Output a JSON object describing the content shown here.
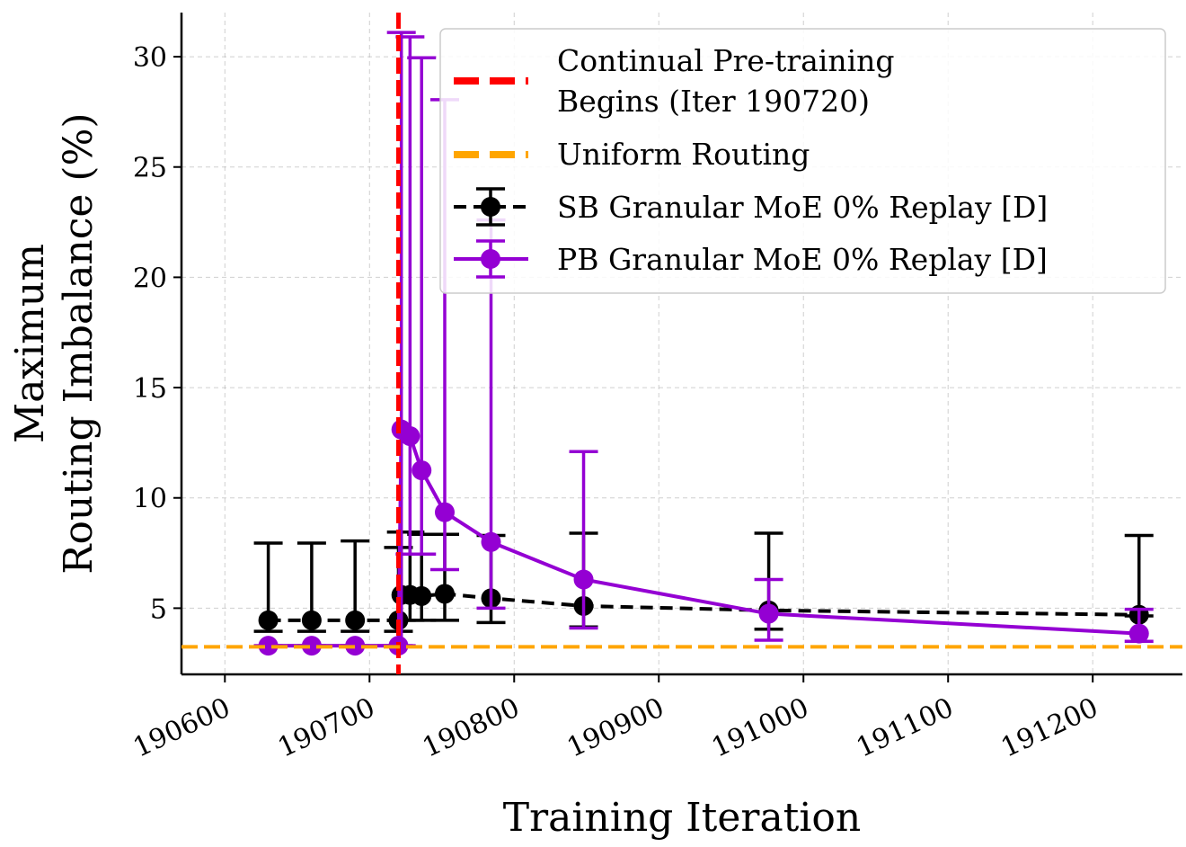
{
  "chart_data": {
    "type": "line",
    "xlabel": "Training Iteration",
    "ylabel_lines": [
      "Maximum",
      "Routing Imbalance (%)"
    ],
    "xlim": [
      190570,
      191262
    ],
    "ylim": [
      2.0,
      32.0
    ],
    "xticks": [
      190600,
      190700,
      190800,
      190900,
      191000,
      191100,
      191200
    ],
    "yticks": [
      5,
      10,
      15,
      20,
      25,
      30
    ],
    "grid": true,
    "legend_position": "top-right",
    "reference_lines": [
      {
        "name": "Continual Pre-training Begins (Iter 190720)",
        "name_lines": [
          "Continual Pre-training",
          "Begins (Iter 190720)"
        ],
        "orientation": "vertical",
        "value": 190720,
        "color": "#ff0000",
        "style": "dashed"
      },
      {
        "name": "Uniform Routing",
        "orientation": "horizontal",
        "value": 3.25,
        "color": "#ffa500",
        "style": "dashed"
      }
    ],
    "series": [
      {
        "name": "SB Granular MoE 0% Replay [D]",
        "color": "#000000",
        "style": "dashed",
        "x": [
          190630,
          190660,
          190690,
          190720,
          190722,
          190728,
          190736,
          190752,
          190784,
          190848,
          190976,
          191232
        ],
        "y": [
          4.45,
          4.45,
          4.45,
          4.45,
          5.6,
          5.6,
          5.55,
          5.65,
          5.45,
          5.1,
          4.9,
          4.7
        ],
        "y_low": [
          3.95,
          3.95,
          3.95,
          3.95,
          4.45,
          4.45,
          4.45,
          4.45,
          4.35,
          4.15,
          4.05,
          4.65
        ],
        "y_high": [
          7.95,
          7.95,
          8.05,
          7.75,
          8.45,
          8.45,
          8.35,
          8.35,
          8.3,
          8.4,
          8.4,
          8.3
        ]
      },
      {
        "name": "PB Granular MoE 0% Replay [D]",
        "color": "#9400d3",
        "style": "solid",
        "x": [
          190630,
          190660,
          190690,
          190720,
          190722,
          190728,
          190736,
          190752,
          190784,
          190848,
          190976,
          191232
        ],
        "y": [
          3.3,
          3.3,
          3.3,
          3.3,
          13.1,
          12.8,
          11.25,
          9.35,
          8.0,
          6.3,
          4.75,
          3.85
        ],
        "y_low": [
          3.3,
          3.3,
          3.3,
          3.3,
          3.3,
          7.45,
          7.45,
          6.75,
          5.0,
          4.1,
          3.55,
          3.5
        ],
        "y_high": [
          3.3,
          3.3,
          3.3,
          3.3,
          31.1,
          30.9,
          29.95,
          28.05,
          22.6,
          12.1,
          6.3,
          4.95
        ]
      }
    ]
  }
}
